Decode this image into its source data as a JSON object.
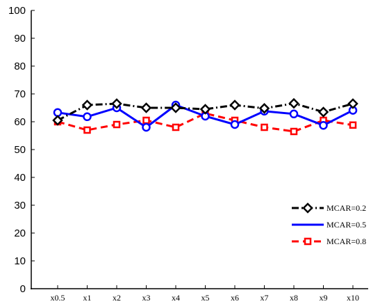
{
  "chart_data": {
    "type": "line",
    "categories": [
      "x0.5",
      "x1",
      "x2",
      "x3",
      "x4",
      "x5",
      "x6",
      "x7",
      "x8",
      "x9",
      "x10"
    ],
    "ylim": [
      0,
      100
    ],
    "yticks": [
      "0",
      "10",
      "20",
      "30",
      "40",
      "50",
      "60",
      "70",
      "80",
      "90",
      "100"
    ],
    "grid": false,
    "legend_position": "bottom-right",
    "series": [
      {
        "name": "MCAR=0.2",
        "color": "#000000",
        "dash": "dash-dot",
        "marker": "diamond",
        "values": [
          60.5,
          66,
          66.5,
          65,
          65,
          64.5,
          66,
          64.8,
          66.6,
          63.5,
          66.5
        ]
      },
      {
        "name": "MCAR=0.5",
        "color": "#0000ff",
        "dash": "solid",
        "marker": "circle",
        "values": [
          63.3,
          61.8,
          65,
          58,
          66,
          62,
          59,
          63.8,
          62.8,
          58.7,
          64.1
        ]
      },
      {
        "name": "MCAR=0.8",
        "color": "#ff0000",
        "dash": "dashed",
        "marker": "square",
        "values": [
          60,
          57,
          59,
          60.5,
          58,
          63,
          60.5,
          58,
          56.5,
          60.5,
          58.8
        ]
      }
    ]
  }
}
